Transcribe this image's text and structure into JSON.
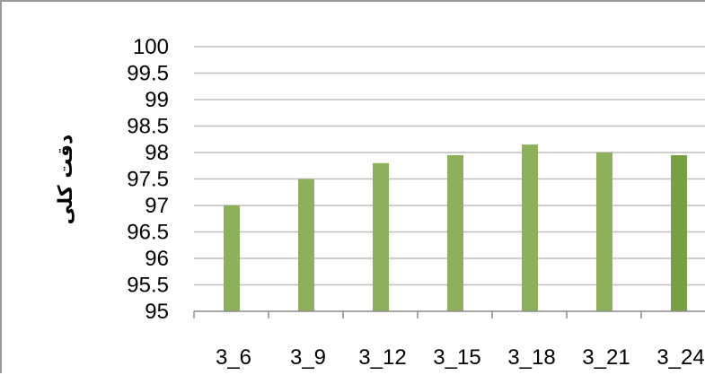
{
  "chart_data": {
    "type": "bar",
    "title": "",
    "xlabel": "",
    "ylabel": "دقت کلی",
    "categories": [
      "3_6",
      "3_9",
      "3_12",
      "3_15",
      "3_18",
      "3_21",
      "3_24"
    ],
    "values": [
      97.0,
      97.5,
      97.8,
      97.95,
      98.15,
      98.0,
      97.95
    ],
    "ylim": [
      95,
      100
    ],
    "yticks": [
      "95",
      "95.5",
      "96",
      "96.5",
      "97",
      "97.5",
      "98",
      "98.5",
      "99",
      "99.5",
      "100"
    ],
    "grid": true,
    "legend": "none",
    "bar_color": "#8db15a",
    "bar_color_last": "#77a042",
    "grid_color": "#bfbfbf"
  }
}
